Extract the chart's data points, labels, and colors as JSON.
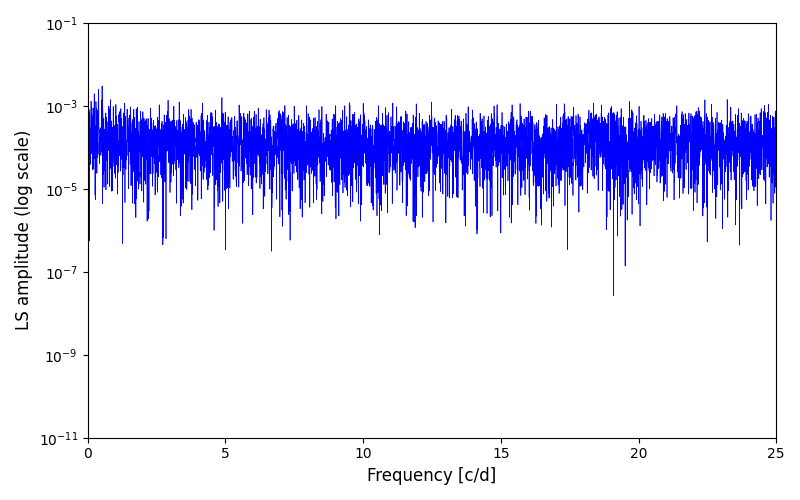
{
  "xlabel": "Frequency [c/d]",
  "ylabel": "LS amplitude (log scale)",
  "line_color": "#0000ff",
  "xlim": [
    0,
    25
  ],
  "ylim_log_min": -11,
  "ylim_log_max": -1,
  "figsize": [
    8.0,
    5.0
  ],
  "dpi": 100,
  "freq_max": 25.0,
  "seed": 12345,
  "background_color": "#ffffff",
  "linewidth": 0.5
}
